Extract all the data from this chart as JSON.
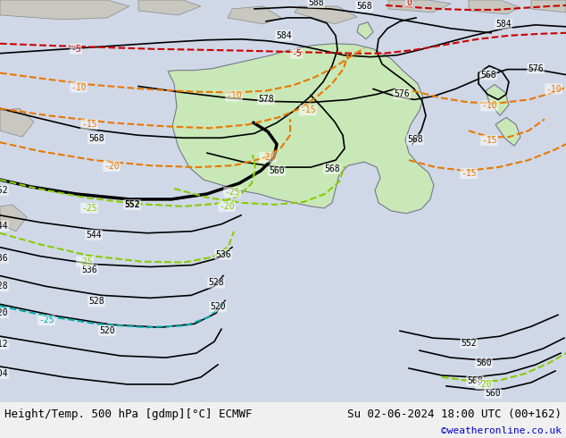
{
  "title_left": "Height/Temp. 500 hPa [gdmp][°C] ECMWF",
  "title_right": "Su 02-06-2024 18:00 UTC (00+162)",
  "credit": "©weatheronline.co.uk",
  "background_color": "#d0d8e8",
  "land_color_gray": "#c8c8c0",
  "australia_color": "#c8e8b8",
  "fig_width": 6.34,
  "fig_height": 4.9,
  "dpi": 100,
  "bottom_bar_color": "#f0f0f0",
  "title_fontsize": 9,
  "credit_color": "#0000cc",
  "label_fontsize": 7
}
